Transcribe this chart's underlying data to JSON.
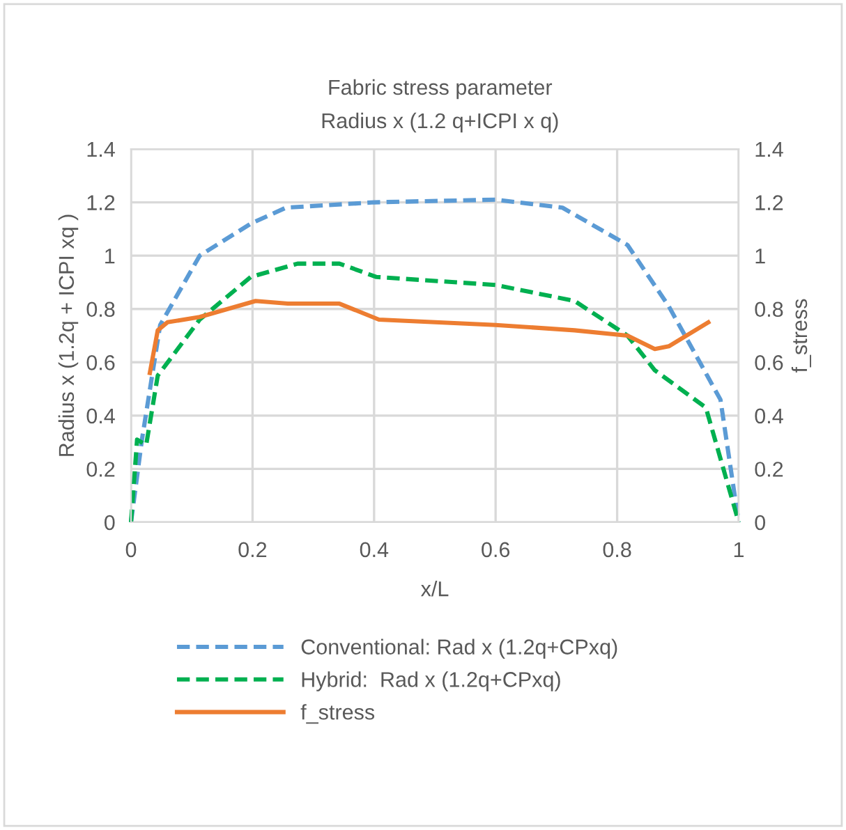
{
  "chart_data": {
    "type": "line",
    "title": "Fabric stress parameter",
    "subtitle": "Radius x (1.2 q+ICPI x q)",
    "xlabel": "x/L",
    "ylabel": "Radius x (1.2q + ICPI xq )",
    "y2label": "f_stress",
    "xlim": [
      0,
      1
    ],
    "xticks": [
      0,
      0.2,
      0.4,
      0.6,
      0.8,
      1
    ],
    "ylim": [
      0,
      1.4
    ],
    "yticks": [
      0,
      0.2,
      0.4,
      0.6,
      0.8,
      1,
      1.2,
      1.4
    ],
    "y2lim": [
      0,
      1.4
    ],
    "y2ticks": [
      0,
      0.2,
      0.4,
      0.6,
      0.8,
      1,
      1.2,
      1.4
    ],
    "grid": true,
    "legend": "bottom",
    "marker": "none",
    "series": [
      {
        "name": "Conventional: Rad x (1.2q+CPxq)",
        "color": "#5b9bd5",
        "line_style": "dashed",
        "x": [
          0,
          0.018,
          0.048,
          0.113,
          0.197,
          0.255,
          0.4,
          0.6,
          0.71,
          0.817,
          0.885,
          0.97,
          1
        ],
        "values": [
          0,
          0.31,
          0.74,
          1.0,
          1.12,
          1.18,
          1.2,
          1.21,
          1.18,
          1.04,
          0.81,
          0.46,
          0
        ]
      },
      {
        "name": "Hybrid:  Rad x (1.2q+CPxq)",
        "color": "#00b050",
        "line_style": "dashed",
        "x": [
          0,
          0.01,
          0.025,
          0.044,
          0.113,
          0.197,
          0.274,
          0.343,
          0.404,
          0.6,
          0.73,
          0.817,
          0.862,
          0.946,
          1
        ],
        "values": [
          0,
          0.31,
          0.29,
          0.55,
          0.76,
          0.92,
          0.97,
          0.97,
          0.92,
          0.89,
          0.83,
          0.7,
          0.57,
          0.43,
          0
        ]
      },
      {
        "name": "f_stress",
        "color": "#ed7d31",
        "line_style": "solid",
        "axis": "y2",
        "x": [
          0.031,
          0.044,
          0.06,
          0.113,
          0.205,
          0.258,
          0.343,
          0.408,
          0.6,
          0.73,
          0.817,
          0.862,
          0.885,
          0.95
        ],
        "values": [
          0.56,
          0.72,
          0.75,
          0.77,
          0.83,
          0.82,
          0.82,
          0.76,
          0.74,
          0.72,
          0.7,
          0.65,
          0.66,
          0.75
        ]
      }
    ]
  }
}
